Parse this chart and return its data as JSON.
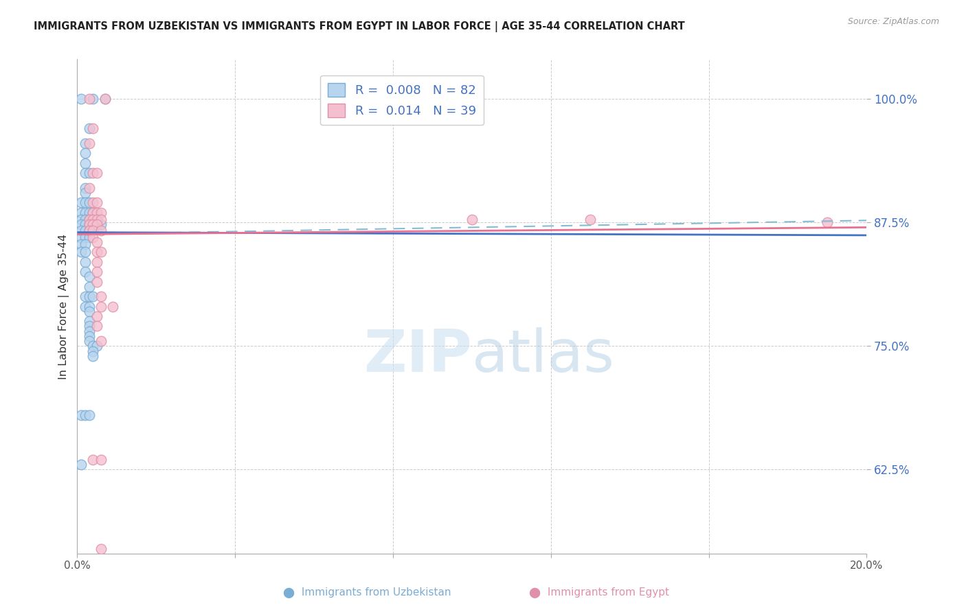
{
  "title": "IMMIGRANTS FROM UZBEKISTAN VS IMMIGRANTS FROM EGYPT IN LABOR FORCE | AGE 35-44 CORRELATION CHART",
  "source": "Source: ZipAtlas.com",
  "ylabel": "In Labor Force | Age 35-44",
  "yticks": [
    0.625,
    0.75,
    0.875,
    1.0
  ],
  "ytick_labels": [
    "62.5%",
    "75.0%",
    "87.5%",
    "100.0%"
  ],
  "xlim": [
    0.0,
    0.2
  ],
  "ylim": [
    0.54,
    1.04
  ],
  "xtick_positions": [
    0.0,
    0.04,
    0.08,
    0.12,
    0.16,
    0.2
  ],
  "watermark_zip": "ZIP",
  "watermark_atlas": "atlas",
  "blue_scatter": [
    [
      0.001,
      1.0
    ],
    [
      0.004,
      1.0
    ],
    [
      0.007,
      1.0
    ],
    [
      0.003,
      0.97
    ],
    [
      0.002,
      0.955
    ],
    [
      0.002,
      0.945
    ],
    [
      0.002,
      0.935
    ],
    [
      0.002,
      0.925
    ],
    [
      0.003,
      0.925
    ],
    [
      0.002,
      0.91
    ],
    [
      0.002,
      0.905
    ],
    [
      0.001,
      0.895
    ],
    [
      0.002,
      0.895
    ],
    [
      0.003,
      0.895
    ],
    [
      0.001,
      0.885
    ],
    [
      0.002,
      0.885
    ],
    [
      0.003,
      0.885
    ],
    [
      0.004,
      0.885
    ],
    [
      0.001,
      0.878
    ],
    [
      0.002,
      0.878
    ],
    [
      0.003,
      0.878
    ],
    [
      0.004,
      0.878
    ],
    [
      0.005,
      0.878
    ],
    [
      0.001,
      0.873
    ],
    [
      0.002,
      0.873
    ],
    [
      0.003,
      0.873
    ],
    [
      0.004,
      0.873
    ],
    [
      0.005,
      0.873
    ],
    [
      0.006,
      0.873
    ],
    [
      0.001,
      0.867
    ],
    [
      0.002,
      0.867
    ],
    [
      0.003,
      0.867
    ],
    [
      0.004,
      0.867
    ],
    [
      0.001,
      0.86
    ],
    [
      0.002,
      0.86
    ],
    [
      0.003,
      0.86
    ],
    [
      0.001,
      0.853
    ],
    [
      0.002,
      0.853
    ],
    [
      0.001,
      0.845
    ],
    [
      0.002,
      0.845
    ],
    [
      0.002,
      0.835
    ],
    [
      0.002,
      0.825
    ],
    [
      0.003,
      0.82
    ],
    [
      0.003,
      0.81
    ],
    [
      0.002,
      0.8
    ],
    [
      0.003,
      0.8
    ],
    [
      0.004,
      0.8
    ],
    [
      0.002,
      0.79
    ],
    [
      0.003,
      0.79
    ],
    [
      0.003,
      0.785
    ],
    [
      0.003,
      0.775
    ],
    [
      0.003,
      0.77
    ],
    [
      0.003,
      0.765
    ],
    [
      0.003,
      0.76
    ],
    [
      0.003,
      0.755
    ],
    [
      0.004,
      0.75
    ],
    [
      0.005,
      0.75
    ],
    [
      0.004,
      0.745
    ],
    [
      0.004,
      0.74
    ],
    [
      0.001,
      0.68
    ],
    [
      0.002,
      0.68
    ],
    [
      0.003,
      0.68
    ],
    [
      0.001,
      0.63
    ]
  ],
  "pink_scatter": [
    [
      0.003,
      1.0
    ],
    [
      0.007,
      1.0
    ],
    [
      0.004,
      0.97
    ],
    [
      0.003,
      0.955
    ],
    [
      0.004,
      0.925
    ],
    [
      0.005,
      0.925
    ],
    [
      0.003,
      0.91
    ],
    [
      0.004,
      0.895
    ],
    [
      0.005,
      0.895
    ],
    [
      0.004,
      0.885
    ],
    [
      0.005,
      0.885
    ],
    [
      0.006,
      0.885
    ],
    [
      0.003,
      0.878
    ],
    [
      0.004,
      0.878
    ],
    [
      0.005,
      0.878
    ],
    [
      0.006,
      0.878
    ],
    [
      0.003,
      0.873
    ],
    [
      0.004,
      0.873
    ],
    [
      0.005,
      0.873
    ],
    [
      0.003,
      0.867
    ],
    [
      0.004,
      0.867
    ],
    [
      0.006,
      0.867
    ],
    [
      0.004,
      0.86
    ],
    [
      0.005,
      0.855
    ],
    [
      0.005,
      0.845
    ],
    [
      0.006,
      0.845
    ],
    [
      0.005,
      0.835
    ],
    [
      0.005,
      0.825
    ],
    [
      0.005,
      0.815
    ],
    [
      0.006,
      0.8
    ],
    [
      0.006,
      0.79
    ],
    [
      0.009,
      0.79
    ],
    [
      0.005,
      0.78
    ],
    [
      0.005,
      0.77
    ],
    [
      0.006,
      0.755
    ],
    [
      0.004,
      0.635
    ],
    [
      0.006,
      0.635
    ],
    [
      0.006,
      0.545
    ],
    [
      0.1,
      0.878
    ],
    [
      0.13,
      0.878
    ],
    [
      0.19,
      0.875
    ]
  ],
  "blue_line": {
    "x0": 0.0,
    "y0": 0.865,
    "x1": 0.2,
    "y1": 0.862
  },
  "blue_dash_line": {
    "x0": 0.0,
    "y0": 0.863,
    "x1": 0.2,
    "y1": 0.877
  },
  "pink_line": {
    "x0": 0.0,
    "y0": 0.863,
    "x1": 0.2,
    "y1": 0.87
  },
  "blue_line_color": "#4472c4",
  "pink_line_color": "#e87090",
  "blue_dash_color": "#85bbd4",
  "grid_color": "#cccccc",
  "axis_tick_color": "#4472c4",
  "title_color": "#222222",
  "background_color": "#ffffff",
  "scatter_blue_face": "#b8d4ee",
  "scatter_blue_edge": "#7aadd4",
  "scatter_pink_face": "#f4c0d0",
  "scatter_pink_edge": "#e090a8"
}
